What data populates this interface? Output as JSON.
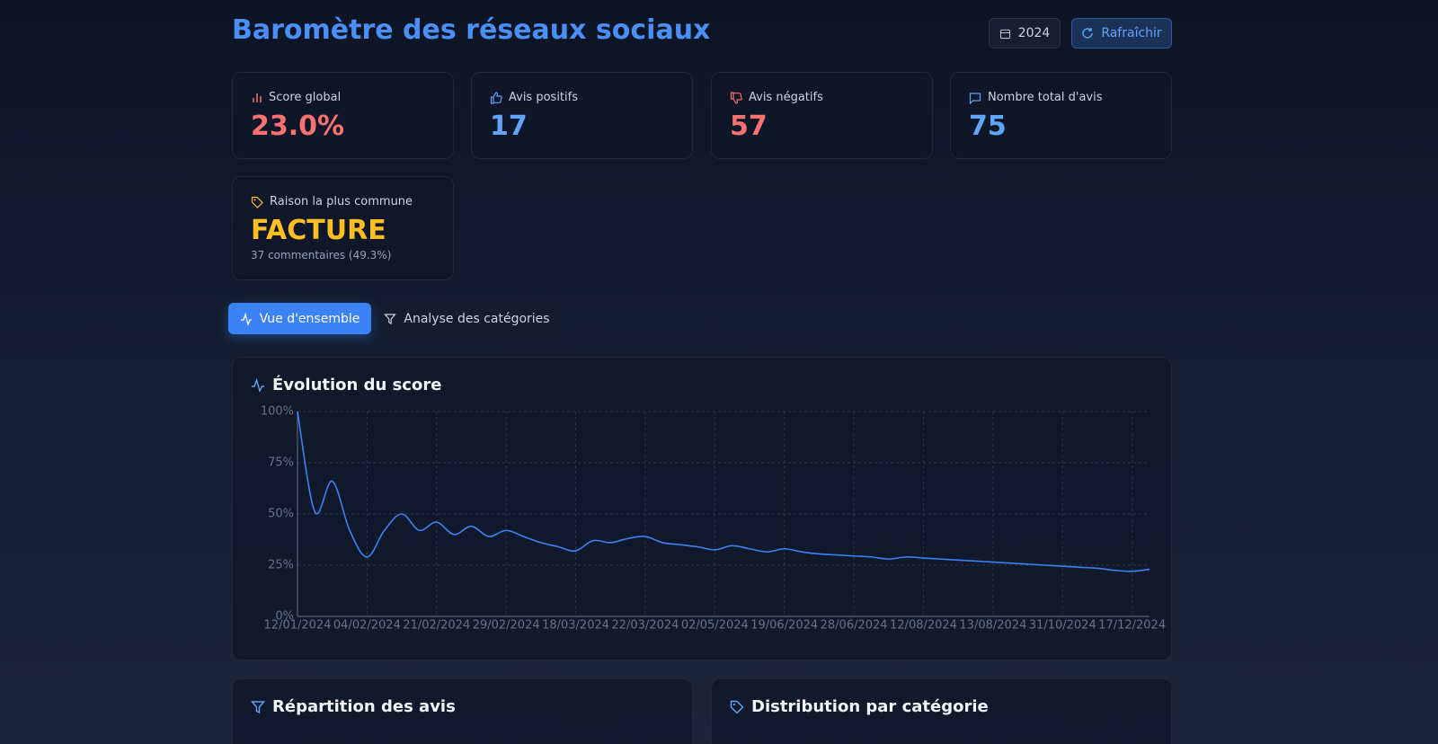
{
  "header": {
    "title": "Baromètre des réseaux sociaux",
    "year_button": "2024",
    "refresh_button": "Rafraîchir"
  },
  "cards": [
    {
      "label": "Score global",
      "value": "23.0%"
    },
    {
      "label": "Avis positifs",
      "value": "17"
    },
    {
      "label": "Avis négatifs",
      "value": "57"
    },
    {
      "label": "Nombre total d'avis",
      "value": "75"
    }
  ],
  "reason_card": {
    "label": "Raison la plus commune",
    "value": "FACTURE",
    "detail": "37 commentaires (49.3%)"
  },
  "tabs": [
    "Vue d'ensemble",
    "Analyse des catégories"
  ],
  "chart_data": {
    "type": "line",
    "title": "Évolution du score",
    "categories": [
      "12/01/2024",
      null,
      null,
      null,
      "04/02/2024",
      null,
      null,
      null,
      "21/02/2024",
      null,
      null,
      null,
      "29/02/2024",
      null,
      null,
      null,
      "18/03/2024",
      null,
      null,
      null,
      "22/03/2024",
      null,
      null,
      null,
      "02/05/2024",
      null,
      null,
      null,
      "19/06/2024",
      null,
      null,
      null,
      "28/06/2024",
      null,
      null,
      null,
      "12/08/2024",
      null,
      null,
      null,
      "13/08/2024",
      null,
      null,
      null,
      "31/10/2024",
      null,
      null,
      null,
      "17/12/2024",
      null
    ],
    "values": [
      100,
      51,
      66,
      42,
      29,
      42,
      50,
      42,
      46,
      40,
      44,
      39,
      42,
      39,
      36,
      34,
      32,
      37,
      36,
      38,
      39,
      36,
      35,
      34,
      32.5,
      34.5,
      33,
      31.5,
      33,
      31.5,
      30.5,
      30,
      29.5,
      29,
      28,
      29,
      28.5,
      28,
      27.5,
      27,
      26.5,
      26,
      25.5,
      25,
      24.5,
      24,
      23.5,
      22.5,
      22,
      23
    ],
    "color": "#3b82f6",
    "ylim": [
      0,
      100
    ],
    "yticks": [
      {
        "value": 0,
        "label": "0%"
      },
      {
        "value": 25,
        "label": "25%"
      },
      {
        "value": 50,
        "label": "50%"
      },
      {
        "value": 75,
        "label": "75%"
      },
      {
        "value": 100,
        "label": "100%"
      }
    ],
    "grid": true
  },
  "panels": [
    "Répartition des avis",
    "Distribution par catégorie"
  ]
}
